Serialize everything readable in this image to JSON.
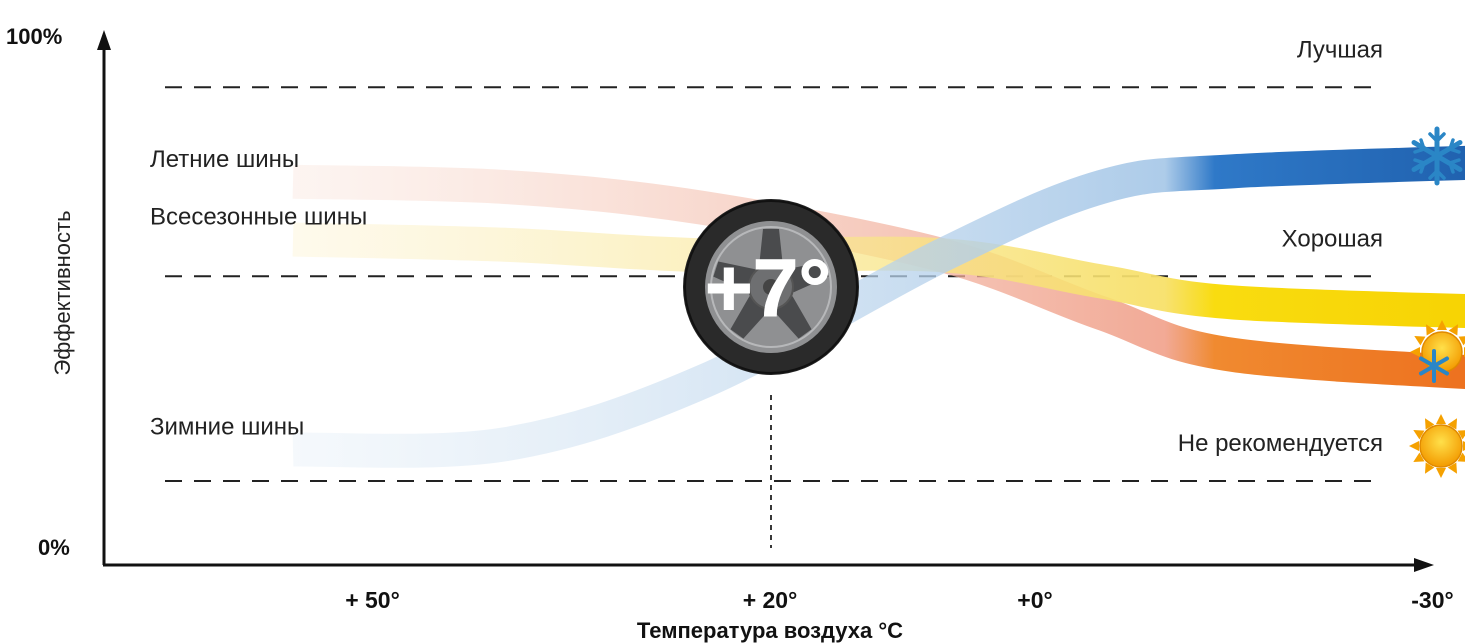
{
  "chart_data": {
    "type": "line",
    "xlabel": "Температура воздуха °C",
    "ylabel": "Эффективность",
    "y_top_label": "100%",
    "y_bottom_label": "0%",
    "x_ticks": [
      {
        "label": "+ 50°",
        "value": 50
      },
      {
        "label": "+ 20°",
        "value": 20
      },
      {
        "label": "+0°",
        "value": 0
      },
      {
        "label": "-30°",
        "value": -30
      }
    ],
    "xlim": [
      57,
      -39
    ],
    "ylim": [
      0,
      100
    ],
    "levels": [
      {
        "label": "Лучшая",
        "value": 91
      },
      {
        "label": "Хорошая",
        "value": 55
      },
      {
        "label": "Не рекомендуется",
        "value": 16
      }
    ],
    "crossover": {
      "label": "+7°",
      "x": 7,
      "y": 59
    },
    "series": [
      {
        "name": "Летние шины",
        "color": "#e8541c",
        "icon": "sun-icon",
        "x": [
          56,
          40,
          25,
          7,
          -5,
          -15,
          -38
        ],
        "y": [
          73,
          72,
          68,
          59,
          48,
          40,
          36
        ]
      },
      {
        "name": "Всесезонные шины",
        "color": "#f6d300",
        "icon": "sun-snowflake-icon",
        "x": [
          56,
          40,
          25,
          7,
          -5,
          -15,
          -38
        ],
        "y": [
          62,
          61,
          59,
          59,
          54,
          50,
          48
        ]
      },
      {
        "name": "Зимние шины",
        "color": "#1f63b0",
        "icon": "snowflake-icon",
        "x": [
          56,
          40,
          25,
          7,
          -5,
          -15,
          -38
        ],
        "y": [
          22,
          23,
          35,
          59,
          72,
          75,
          77
        ]
      }
    ]
  }
}
